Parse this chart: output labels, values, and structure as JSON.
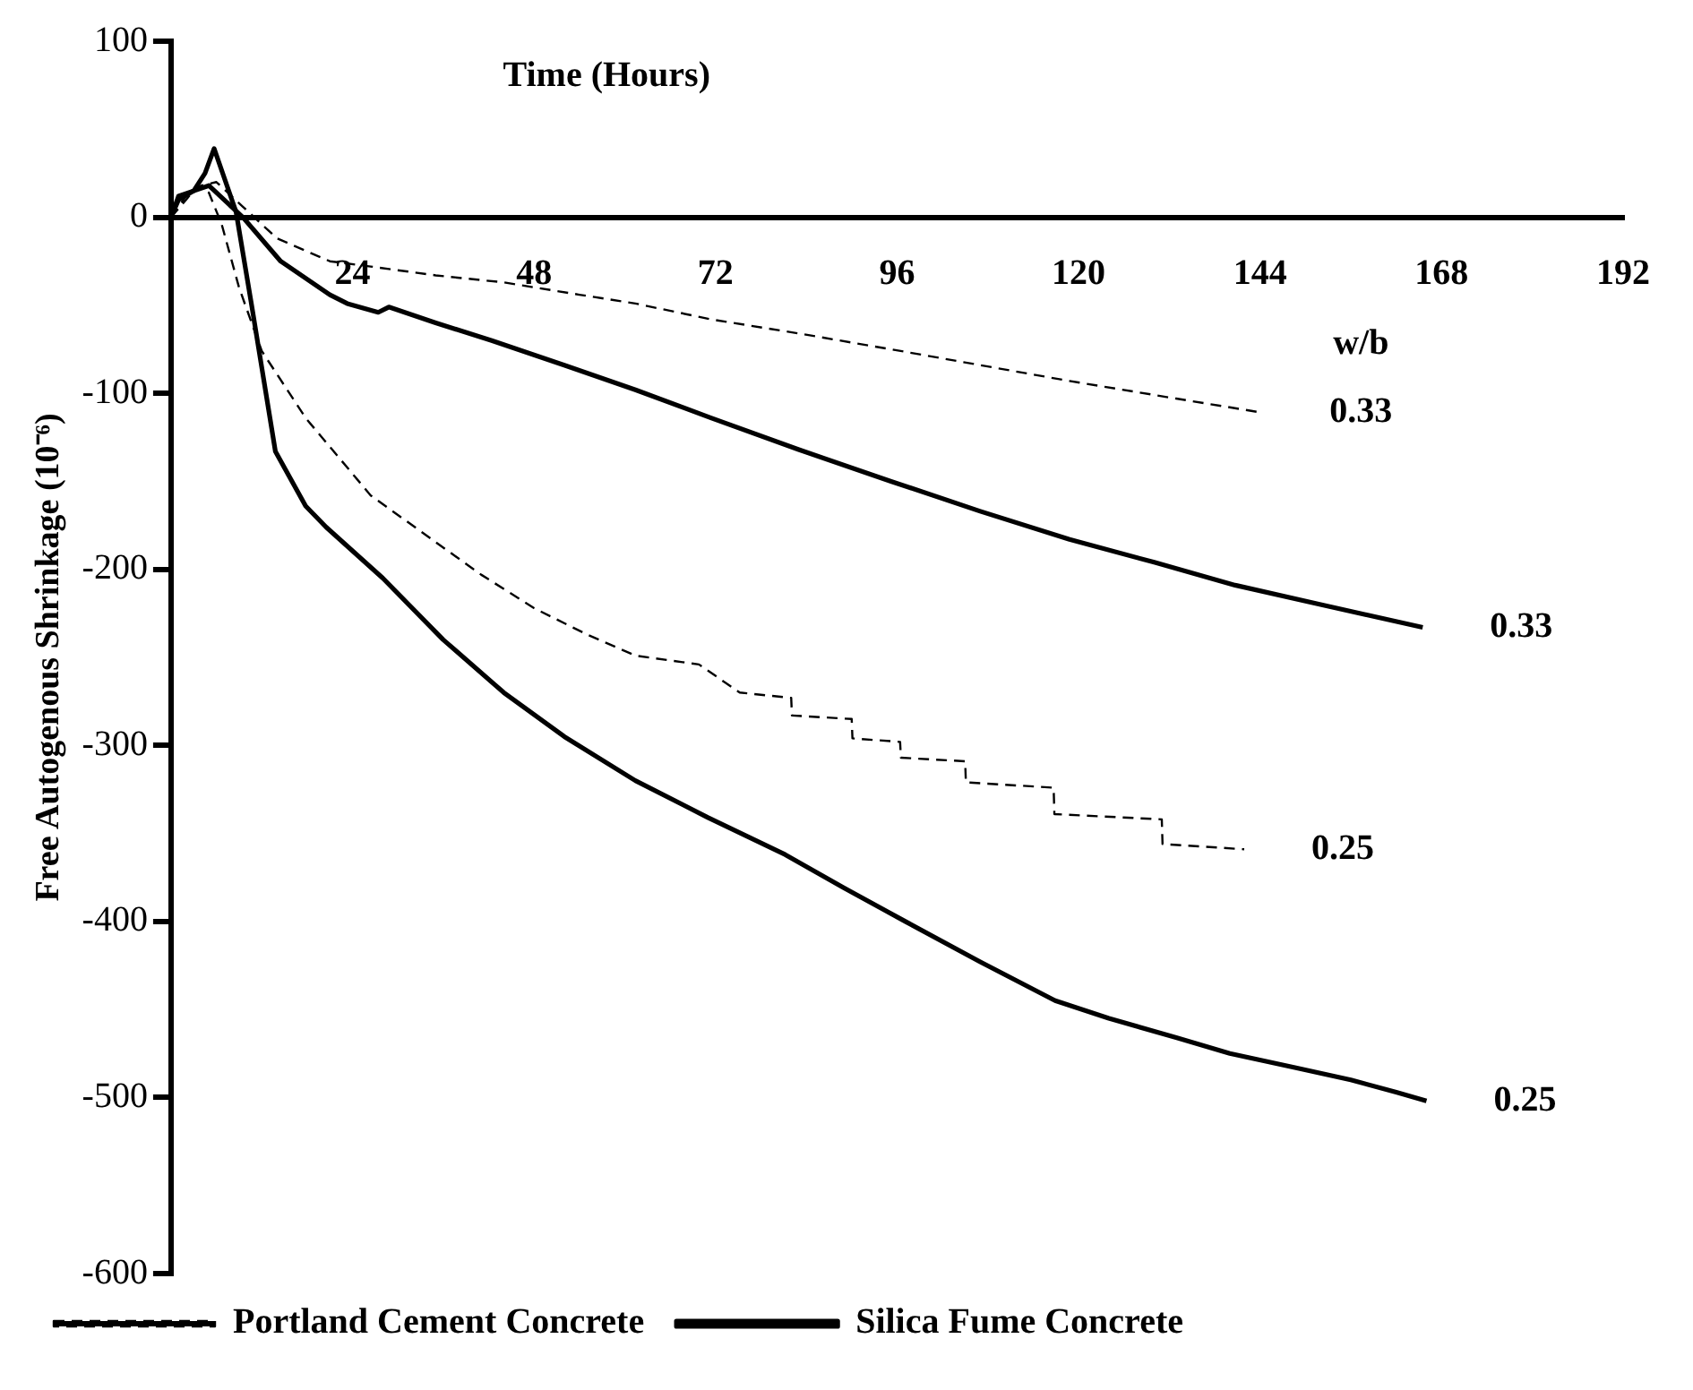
{
  "chart_data": {
    "type": "line",
    "xlabel": "Time (Hours)",
    "ylabel": "Free Autogenous Shrinkage (10⁻⁶)",
    "xlim": [
      0,
      192
    ],
    "xticks": [
      {
        "value": 0,
        "label": null
      },
      24,
      48,
      72,
      96,
      120,
      144,
      168,
      192
    ],
    "ylim": [
      -600,
      100
    ],
    "yticks": [
      -600,
      -500,
      -400,
      -300,
      -200,
      -100,
      0,
      100
    ],
    "grid": false,
    "legend": "bottom left",
    "marker": "none",
    "series": [
      {
        "name": "Portland Cement Concrete",
        "color": "#000000",
        "line_style": "dashed",
        "x": [
          0,
          2,
          4,
          6,
          9.5,
          14,
          21,
          26.4,
          35,
          44,
          54,
          61.4,
          71.4,
          83,
          95.2,
          107,
          118.8,
          132.9,
          144.3
        ],
        "values": [
          0,
          12,
          18,
          20,
          6,
          -12,
          -25,
          -28,
          -33,
          -37,
          -44,
          -49,
          -58,
          -66,
          -75,
          -84,
          -93,
          -103,
          -111
        ]
      },
      {
        "name": "Silica Fume Concrete",
        "color": "#000000",
        "line_style": "solid",
        "x": [
          0,
          1,
          3,
          5,
          7,
          9.5,
          14.5,
          21,
          23.3,
          27.4,
          28.8,
          35,
          42.4,
          52,
          61.4,
          71.4,
          83,
          95.2,
          107,
          118.8,
          130,
          140.7,
          152,
          165.5
        ],
        "values": [
          0,
          12,
          15,
          18,
          10,
          0,
          -25,
          -44,
          -49,
          -54,
          -51,
          -60,
          -70,
          -84,
          -98,
          -114,
          -132,
          -150,
          -167,
          -183,
          -196,
          -209,
          -220,
          -233
        ]
      },
      {
        "color": "#000000",
        "line_style": "dashed",
        "x": [
          0,
          2,
          3.5,
          5,
          6.7,
          9,
          12,
          17.8,
          26.4,
          34.5,
          41,
          48,
          55,
          61.4,
          69.8,
          75.2,
          82,
          82.1,
          90,
          90.1,
          96.4,
          96.5,
          105,
          105.1,
          116.7,
          116.8,
          131,
          131.1,
          141.9
        ],
        "values": [
          0,
          10,
          18,
          14,
          -4,
          -40,
          -76,
          -114,
          -158,
          -183,
          -203,
          -222,
          -237,
          -249,
          -254,
          -270,
          -273,
          -283,
          -285,
          -296,
          -298,
          -307,
          -309,
          -321,
          -324,
          -339,
          -342,
          -356,
          -359
        ]
      },
      {
        "color": "#000000",
        "line_style": "solid",
        "x": [
          0,
          1,
          3,
          4.5,
          5.7,
          8.6,
          10.7,
          13.8,
          17.8,
          20.5,
          28,
          36,
          44,
          52,
          61.4,
          71,
          81.2,
          89,
          97.1,
          107,
          116.9,
          124,
          132.9,
          140,
          148.6,
          156,
          162,
          166
        ],
        "values": [
          0,
          10,
          15,
          25,
          39,
          3,
          -51,
          -133,
          -164,
          -176,
          -205,
          -240,
          -270,
          -295,
          -320,
          -341,
          -362,
          -381,
          -400,
          -423,
          -445,
          -455,
          -466,
          -475,
          -483,
          -490,
          -497,
          -502
        ]
      }
    ],
    "annotations": [
      "w/b",
      {
        "text": "0.33",
        "x": 144.3,
        "y": -111
      },
      {
        "text": "0.33",
        "x": 165.5,
        "y": -233
      },
      {
        "text": "0.25",
        "x": 141.9,
        "y": -359
      },
      {
        "text": "0.25",
        "x": 166,
        "y": -502
      }
    ]
  }
}
